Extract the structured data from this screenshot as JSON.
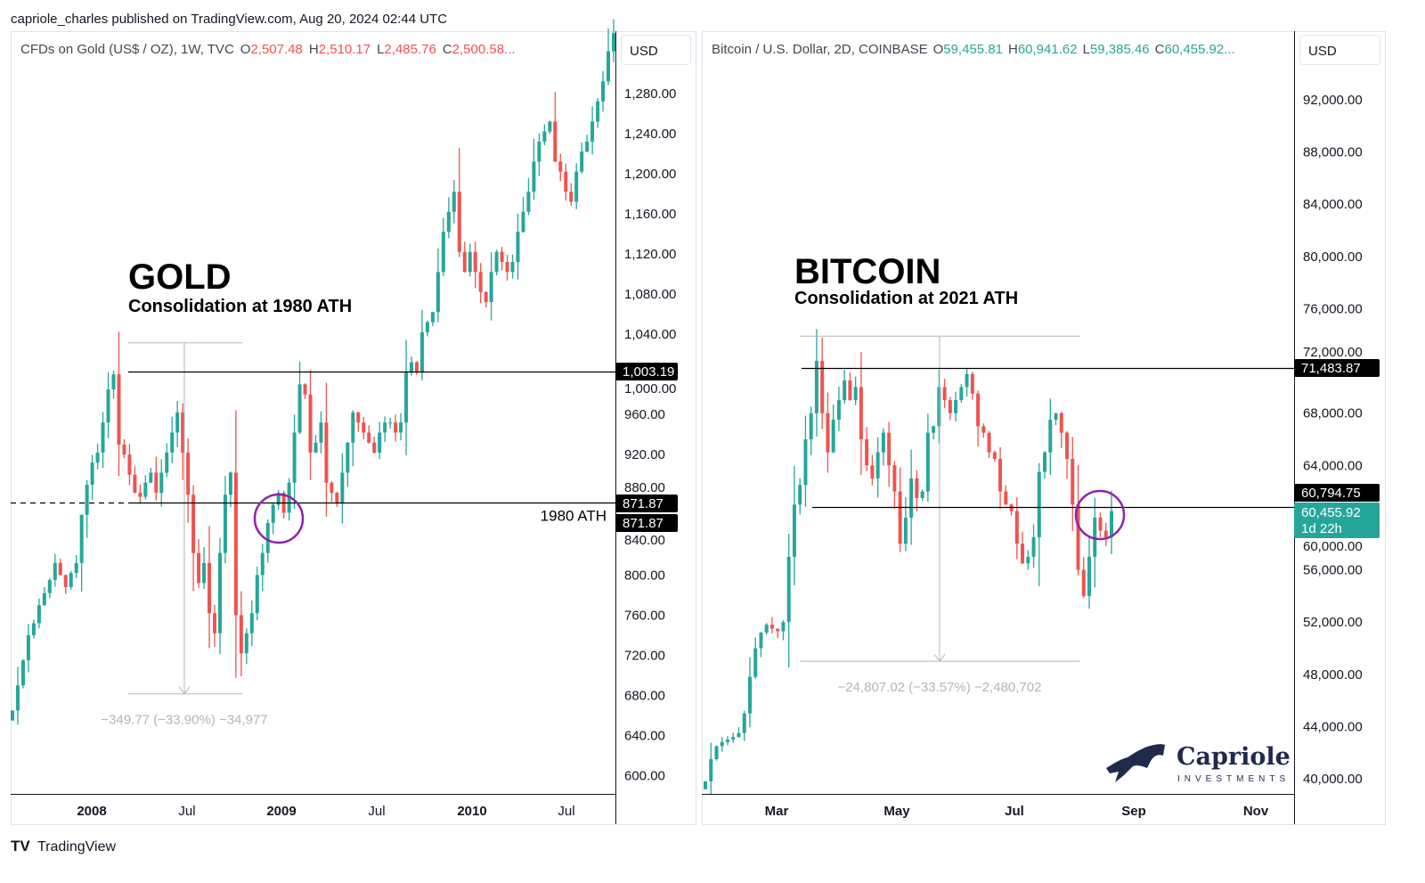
{
  "header": {
    "published": "capriole_charles published on TradingView.com, Aug 20, 2024 02:44 UTC"
  },
  "footer": {
    "brand": "TradingView"
  },
  "colors": {
    "up": "#26a69a",
    "down": "#ef5350",
    "circle": "#8e24aa",
    "measure": "#b2b5be",
    "tag": "#000000",
    "last_price": "#26a69a"
  },
  "chart_data": [
    {
      "type": "candlestick",
      "symbol": "CFDs on Gold (US$ / OZ), 1W, TVC",
      "ohlc_labels": {
        "o": "O",
        "h": "H",
        "l": "L",
        "c": "C"
      },
      "ohlc_values": {
        "o": "2,507.48",
        "h": "2,510.17",
        "l": "2,485.76",
        "c": "2,500.58..."
      },
      "ohlc_color": "#ef5350",
      "currency": "USD",
      "title": "GOLD",
      "subtitle": "Consolidation at 1980 ATH",
      "ylim": [
        581,
        1342
      ],
      "y_ticks": [
        600,
        640,
        680,
        720,
        760,
        800,
        840,
        880,
        920,
        960,
        1000,
        1040,
        1080,
        1120,
        1160,
        1200,
        1240,
        1280
      ],
      "y_tick_labels": [
        "600.00",
        "640.00",
        "680.00",
        "720.00",
        "760.00",
        "800.00",
        "840.00",
        "880.00",
        "920.00",
        "960.00",
        "1,000.00",
        "1,040.00",
        "1,080.00",
        "1,120.00",
        "1,160.00",
        "1,200.00",
        "1,240.00",
        "1,280.00"
      ],
      "x_tick_labels": [
        {
          "label": "2008",
          "bold": true
        },
        {
          "label": "Jul",
          "bold": false
        },
        {
          "label": "2009",
          "bold": true
        },
        {
          "label": "Jul",
          "bold": false
        },
        {
          "label": "2010",
          "bold": true
        },
        {
          "label": "Jul",
          "bold": false
        }
      ],
      "closes": [
        665,
        690,
        715,
        740,
        752,
        770,
        782,
        795,
        812,
        800,
        788,
        802,
        812,
        860,
        890,
        912,
        922,
        952,
        985,
        1000,
        930,
        920,
        900,
        882,
        878,
        892,
        902,
        882,
        902,
        922,
        942,
        962,
        922,
        880,
        822,
        792,
        812,
        762,
        742,
        822,
        880,
        902,
        760,
        722,
        742,
        762,
        800,
        822,
        852,
        870,
        882,
        862,
        892,
        942,
        990,
        980,
        922,
        932,
        952,
        892,
        882,
        872,
        902,
        932,
        962,
        952,
        942,
        932,
        922,
        942,
        952,
        952,
        942,
        952,
        1002,
        1012,
        1002,
        1042,
        1052,
        1062,
        1102,
        1142,
        1162,
        1182,
        1122,
        1102,
        1122,
        1102,
        1082,
        1072,
        1102,
        1122,
        1112,
        1102,
        1112,
        1142,
        1162,
        1182,
        1212,
        1232,
        1242,
        1252,
        1212,
        1202,
        1182,
        1172,
        1202,
        1222,
        1232,
        1252,
        1272,
        1292,
        1322,
        1340
      ],
      "price_lines": [
        {
          "value": 1003.19,
          "label": "1,003.19"
        },
        {
          "value": 871.87,
          "label": "871.87",
          "text": "1980 ATH",
          "second_label": "871.87"
        }
      ],
      "measure": {
        "from": 1031.4,
        "to": 681.6,
        "label": "−349.77 (−33.90%) −34,977"
      }
    },
    {
      "type": "candlestick",
      "symbol": "Bitcoin / U.S. Dollar, 2D, COINBASE",
      "ohlc_labels": {
        "o": "O",
        "h": "H",
        "l": "L",
        "c": "C"
      },
      "ohlc_values": {
        "o": "59,455.81",
        "h": "60,941.62",
        "l": "59,385.46",
        "c": "60,455.92..."
      },
      "ohlc_color": "#26a69a",
      "currency": "USD",
      "title": "BITCOIN",
      "subtitle": "Consolidation at 2021 ATH",
      "ylim": [
        38772,
        97254
      ],
      "y_ticks": [
        40000,
        44000,
        48000,
        52000,
        56000,
        60000,
        64000,
        68000,
        72000,
        76000,
        80000,
        84000,
        88000,
        92000
      ],
      "y_tick_labels": [
        "40,000.00",
        "44,000.00",
        "48,000.00",
        "52,000.00",
        "56,000.00",
        "60,000.00",
        "64,000.00",
        "68,000.00",
        "72,000.00",
        "76,000.00",
        "80,000.00",
        "84,000.00",
        "88,000.00",
        "92,000.00"
      ],
      "x_tick_labels": [
        {
          "label": "Mar",
          "bold": true
        },
        {
          "label": "May",
          "bold": true
        },
        {
          "label": "Jul",
          "bold": true
        },
        {
          "label": "Sep",
          "bold": true
        },
        {
          "label": "Nov",
          "bold": true
        }
      ],
      "closes": [
        39800,
        41500,
        42500,
        42800,
        43000,
        43200,
        43500,
        45000,
        47800,
        50000,
        51200,
        51800,
        51500,
        51300,
        52000,
        57000,
        61000,
        62500,
        66000,
        68000,
        72000,
        68000,
        65000,
        67500,
        69000,
        70500,
        69000,
        70000,
        66000,
        64000,
        63000,
        65000,
        66500,
        64000,
        62000,
        58000,
        60000,
        63000,
        61500,
        62000,
        66500,
        67000,
        70000,
        69000,
        68000,
        69000,
        70000,
        71000,
        69500,
        67000,
        66500,
        65000,
        64500,
        62000,
        61000,
        60500,
        58000,
        56500,
        57000,
        58500,
        63500,
        65000,
        67500,
        68000,
        66500,
        64500,
        61000,
        56000,
        54000,
        57000,
        60000,
        59000,
        58500,
        60500
      ],
      "price_lines": [
        {
          "value": 71483.87,
          "label": "71,483.87"
        },
        {
          "value": 60794.75,
          "label": "60,794.75"
        }
      ],
      "last_price": {
        "value": 60455.92,
        "label": "60,455.92",
        "countdown": "1d 22h"
      },
      "measure": {
        "from": 73900,
        "to": 49000,
        "label": "−24,807.02 (−33.57%) −2,480,702"
      },
      "watermark": {
        "name": "Capriole",
        "tagline": "INVESTMENTS"
      }
    }
  ]
}
